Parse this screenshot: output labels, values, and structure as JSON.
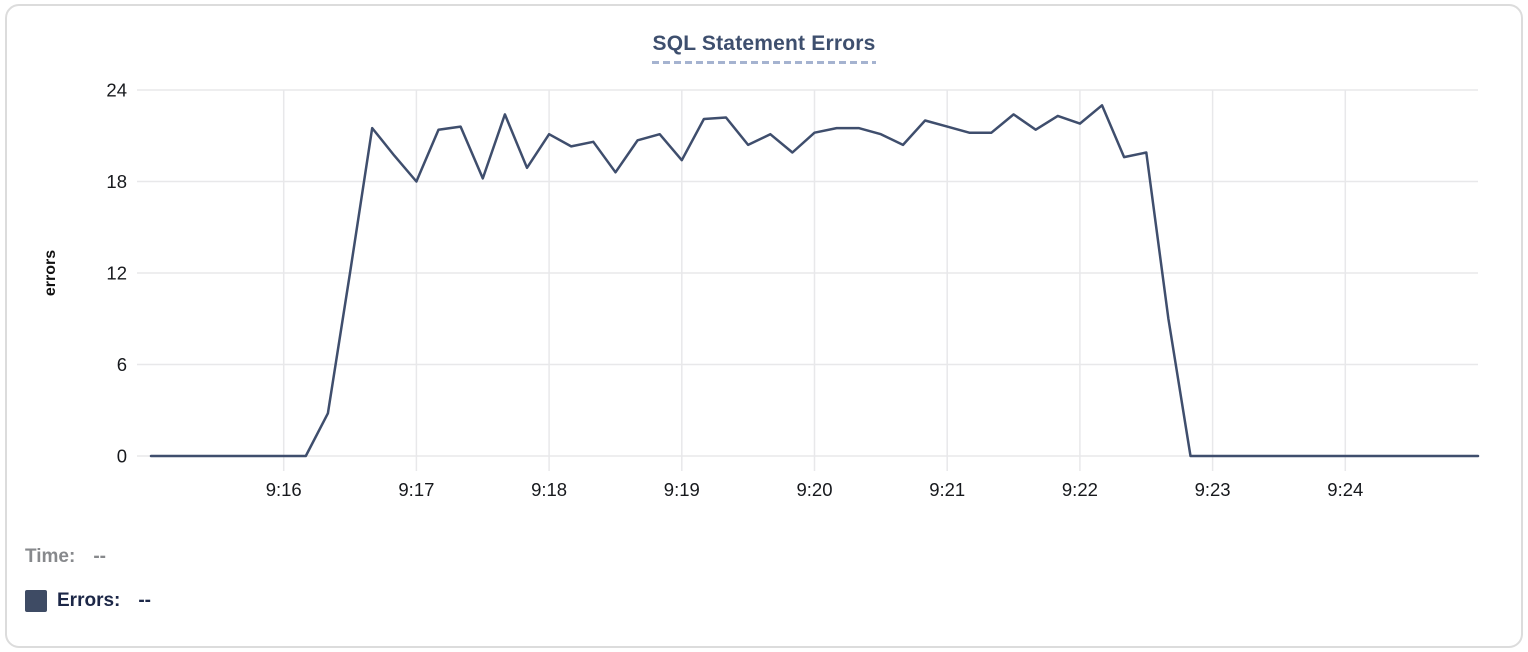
{
  "colors": {
    "title": "#3e4f6e",
    "title_underline": "#a5b3d0",
    "series_line": "#3f4e6d",
    "swatch": "#3e4b64",
    "time_label": "#87898c",
    "errors_label": "#1c2747",
    "tick_label": "#17191d",
    "axis_label": "#111111",
    "grid": "#e8e8ea",
    "card_border": "#dcdcdc"
  },
  "legend": {
    "time_label": "Time:",
    "time_value": "--",
    "errors_label": "Errors:",
    "errors_value": "--"
  },
  "chart_data": {
    "type": "line",
    "title": "SQL Statement Errors",
    "xlabel": "",
    "ylabel": "errors",
    "x_start": "9:15:00",
    "x_end": "9:25:00",
    "x_tick_labels": [
      "9:16",
      "9:17",
      "9:18",
      "9:19",
      "9:20",
      "9:21",
      "9:22",
      "9:23",
      "9:24"
    ],
    "y_ticks": [
      0,
      6,
      12,
      18,
      24
    ],
    "ylim": [
      0,
      24
    ],
    "grid": true,
    "legend_position": "bottom-left",
    "series": [
      {
        "name": "Errors",
        "points": [
          [
            "9:15:00",
            0
          ],
          [
            "9:15:10",
            0
          ],
          [
            "9:15:20",
            0
          ],
          [
            "9:15:30",
            0
          ],
          [
            "9:15:40",
            0
          ],
          [
            "9:15:50",
            0
          ],
          [
            "9:16:00",
            0
          ],
          [
            "9:16:10",
            0
          ],
          [
            "9:16:20",
            2.8
          ],
          [
            "9:16:30",
            12
          ],
          [
            "9:16:40",
            21.5
          ],
          [
            "9:16:50",
            19.7
          ],
          [
            "9:17:00",
            18
          ],
          [
            "9:17:10",
            21.4
          ],
          [
            "9:17:20",
            21.6
          ],
          [
            "9:17:30",
            18.2
          ],
          [
            "9:17:40",
            22.4
          ],
          [
            "9:17:50",
            18.9
          ],
          [
            "9:18:00",
            21.1
          ],
          [
            "9:18:10",
            20.3
          ],
          [
            "9:18:20",
            20.6
          ],
          [
            "9:18:30",
            18.6
          ],
          [
            "9:18:40",
            20.7
          ],
          [
            "9:18:50",
            21.1
          ],
          [
            "9:19:00",
            19.4
          ],
          [
            "9:19:10",
            22.1
          ],
          [
            "9:19:20",
            22.2
          ],
          [
            "9:19:30",
            20.4
          ],
          [
            "9:19:40",
            21.1
          ],
          [
            "9:19:50",
            19.9
          ],
          [
            "9:20:00",
            21.2
          ],
          [
            "9:20:10",
            21.5
          ],
          [
            "9:20:20",
            21.5
          ],
          [
            "9:20:30",
            21.1
          ],
          [
            "9:20:40",
            20.4
          ],
          [
            "9:20:50",
            22
          ],
          [
            "9:21:00",
            21.6
          ],
          [
            "9:21:10",
            21.2
          ],
          [
            "9:21:20",
            21.2
          ],
          [
            "9:21:30",
            22.4
          ],
          [
            "9:21:40",
            21.4
          ],
          [
            "9:21:50",
            22.3
          ],
          [
            "9:22:00",
            21.8
          ],
          [
            "9:22:10",
            23
          ],
          [
            "9:22:20",
            19.6
          ],
          [
            "9:22:30",
            19.9
          ],
          [
            "9:22:40",
            9
          ],
          [
            "9:22:50",
            0
          ],
          [
            "9:23:00",
            0
          ],
          [
            "9:23:10",
            0
          ],
          [
            "9:23:20",
            0
          ],
          [
            "9:23:30",
            0
          ],
          [
            "9:23:40",
            0
          ],
          [
            "9:23:50",
            0
          ],
          [
            "9:24:00",
            0
          ],
          [
            "9:24:10",
            0
          ],
          [
            "9:24:20",
            0
          ],
          [
            "9:24:30",
            0
          ],
          [
            "9:24:40",
            0
          ],
          [
            "9:24:50",
            0
          ],
          [
            "9:25:00",
            0
          ]
        ]
      }
    ]
  }
}
